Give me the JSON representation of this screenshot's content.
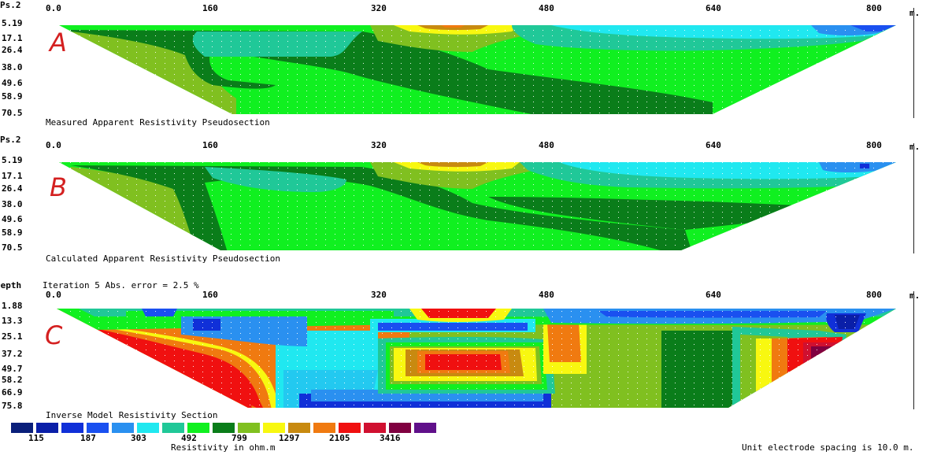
{
  "panels": [
    {
      "id": "A",
      "letter": "A",
      "corner_label": "Ps.2",
      "caption": "Measured Apparent Resistivity Pseudosection",
      "header_note": "",
      "x_ticks": [
        "0.0",
        "160",
        "320",
        "480",
        "640",
        "800"
      ],
      "x_unit": "m.",
      "depth_labels": [
        "5.19",
        "17.1",
        "26.4",
        "38.0",
        "49.6",
        "58.9",
        "70.5"
      ]
    },
    {
      "id": "B",
      "letter": "B",
      "corner_label": "Ps.2",
      "caption": "Calculated Apparent Resistivity Pseudosection",
      "header_note": "",
      "x_ticks": [
        "0.0",
        "160",
        "320",
        "480",
        "640",
        "800"
      ],
      "x_unit": "m.",
      "depth_labels": [
        "5.19",
        "17.1",
        "26.4",
        "38.0",
        "49.6",
        "58.9",
        "70.5"
      ]
    },
    {
      "id": "C",
      "letter": "C",
      "corner_label": "Depth",
      "caption": "Inverse Model Resistivity Section",
      "header_note": "Iteration 5 Abs. error = 2.5 %",
      "x_ticks": [
        "0.0",
        "160",
        "320",
        "480",
        "640",
        "800"
      ],
      "x_unit": "m.",
      "depth_labels": [
        "1.88",
        "13.3",
        "25.1",
        "37.2",
        "49.7",
        "58.2",
        "66.9",
        "75.8"
      ]
    }
  ],
  "legend": {
    "colors": [
      "#0a1f7a",
      "#0a1fa8",
      "#1030d8",
      "#1a50f0",
      "#2a90f0",
      "#20e8f0",
      "#20c898",
      "#10f020",
      "#0a7d1a",
      "#80c020",
      "#f8f810",
      "#c88a10",
      "#f07a10",
      "#f01010",
      "#d01030",
      "#800040",
      "#60108a"
    ],
    "tick_labels": [
      "115",
      "187",
      "303",
      "492",
      "799",
      "1297",
      "2105",
      "3416"
    ],
    "title": "Resistivity in ohm.m"
  },
  "footer": {
    "spacing_note": "Unit electrode spacing is 10.0 m."
  },
  "chart_data": [
    {
      "type": "heatmap",
      "title": "Measured Apparent Resistivity Pseudosection",
      "x_range": [
        0,
        820
      ],
      "xlabel": "m.",
      "y_ticks": [
        5.19,
        17.1,
        26.4,
        38.0,
        49.6,
        58.9,
        70.5
      ]
    },
    {
      "type": "heatmap",
      "title": "Calculated Apparent Resistivity Pseudosection",
      "x_range": [
        0,
        820
      ],
      "xlabel": "m.",
      "y_ticks": [
        5.19,
        17.1,
        26.4,
        38.0,
        49.6,
        58.9,
        70.5
      ]
    },
    {
      "type": "heatmap",
      "title": "Inverse Model Resistivity Section",
      "x_range": [
        0,
        820
      ],
      "xlabel": "m.",
      "y_ticks": [
        1.88,
        13.3,
        25.1,
        37.2,
        49.7,
        58.2,
        66.9,
        75.8
      ],
      "color_scale": [
        115,
        187,
        303,
        492,
        799,
        1297,
        2105,
        3416
      ],
      "abs_error_percent": 2.5,
      "iteration": 5
    }
  ]
}
